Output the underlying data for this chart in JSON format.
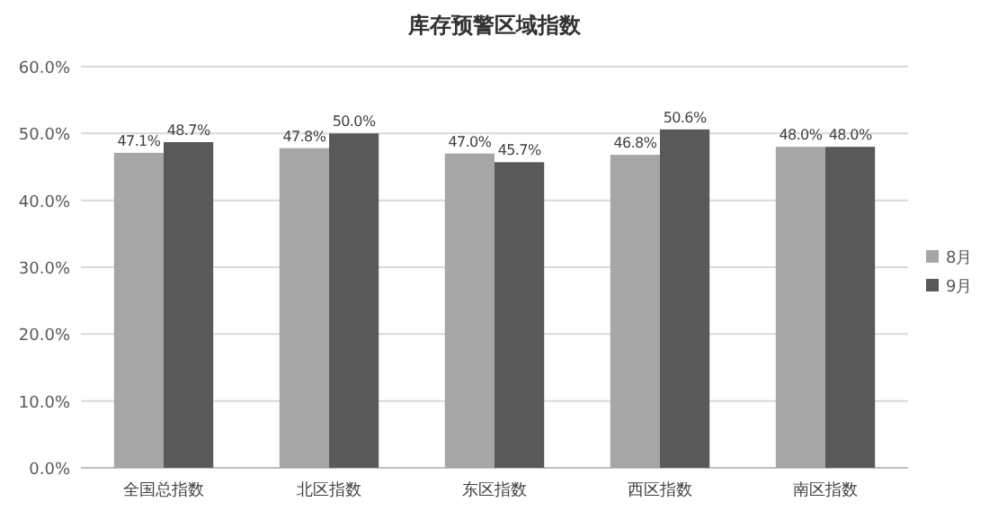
{
  "chart_data": {
    "type": "bar",
    "title": "库存预警区域指数",
    "categories": [
      "全国总指数",
      "北区指数",
      "东区指数",
      "西区指数",
      "南区指数"
    ],
    "series": [
      {
        "name": "8月",
        "color": "#a6a6a6",
        "values": [
          47.1,
          47.8,
          47.0,
          46.8,
          48.0
        ],
        "value_labels": [
          "47.1%",
          "47.8%",
          "47.0%",
          "46.8%",
          "48.0%"
        ]
      },
      {
        "name": "9月",
        "color": "#595959",
        "values": [
          48.7,
          50.0,
          45.7,
          50.6,
          48.0
        ],
        "value_labels": [
          "48.7%",
          "50.0%",
          "45.7%",
          "50.6%",
          "48.0%"
        ]
      }
    ],
    "ylim": [
      0,
      60
    ],
    "yticks": [
      {
        "value": 0,
        "label": "0.0%"
      },
      {
        "value": 10,
        "label": "10.0%"
      },
      {
        "value": 20,
        "label": "20.0%"
      },
      {
        "value": 30,
        "label": "30.0%"
      },
      {
        "value": 40,
        "label": "40.0%"
      },
      {
        "value": 50,
        "label": "50.0%"
      },
      {
        "value": 60,
        "label": "60.0%"
      }
    ],
    "grid": "y",
    "legend": "right"
  }
}
